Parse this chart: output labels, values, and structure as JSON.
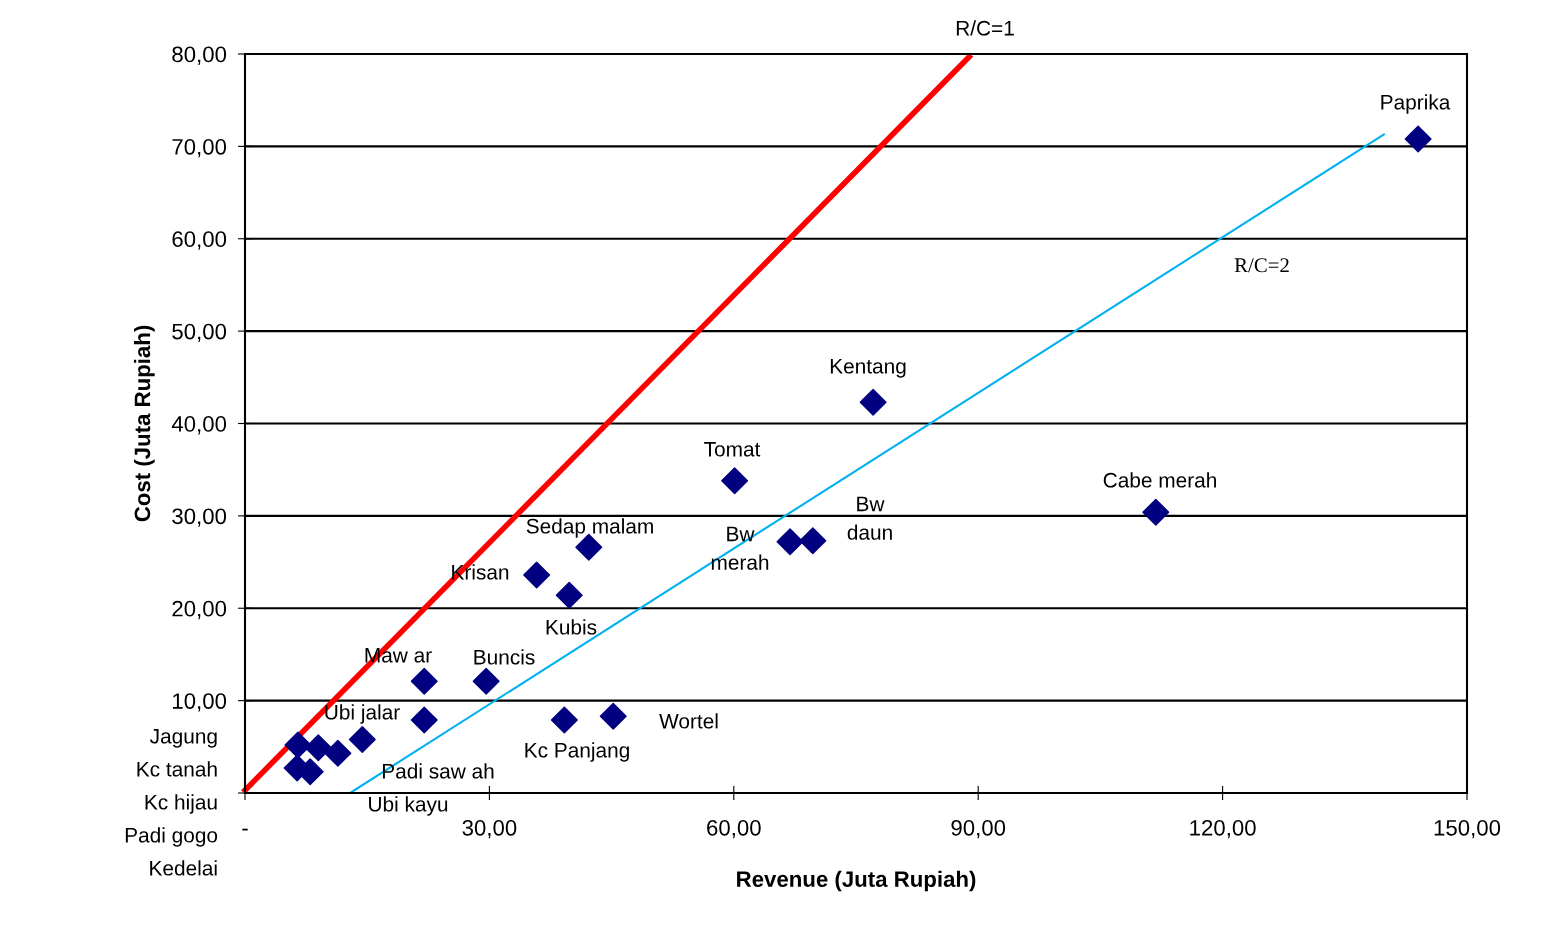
{
  "chart_data": {
    "type": "scatter",
    "xlabel": "Revenue (Juta Rupiah)",
    "ylabel": "Cost (Juta Rupiah)",
    "xlim": [
      0,
      150
    ],
    "xticks": [
      {
        "value": 0,
        "label": "-"
      },
      {
        "value": 30,
        "label": "30,00"
      },
      {
        "value": 60,
        "label": "60,00"
      },
      {
        "value": 90,
        "label": "90,00"
      },
      {
        "value": 120,
        "label": "120,00"
      },
      {
        "value": 150,
        "label": "150,00"
      }
    ],
    "ylim": [
      0,
      80
    ],
    "yticks": [
      {
        "value": 0,
        "label": null
      },
      {
        "value": 10,
        "label": "10,00"
      },
      {
        "value": 20,
        "label": "20,00"
      },
      {
        "value": 30,
        "label": "30,00"
      },
      {
        "value": 40,
        "label": "40,00"
      },
      {
        "value": 50,
        "label": "50,00"
      },
      {
        "value": 60,
        "label": "60,00"
      },
      {
        "value": 70,
        "label": "70,00"
      },
      {
        "value": 80,
        "label": "80,00"
      }
    ],
    "grid": "y",
    "legend": false,
    "series": [
      {
        "type": "line",
        "color": "#ff0000",
        "marker": "none",
        "line_style": "solid",
        "x": [
          0,
          88.9
        ],
        "values": [
          0.3,
          79.7
        ]
      },
      {
        "type": "line",
        "color": "#00b0f0",
        "marker": "none",
        "line_style": "solid",
        "x": [
          12.9,
          139.8
        ],
        "values": [
          0,
          71.3
        ]
      },
      {
        "color": "#000080",
        "marker": "diamond",
        "x": [
          144.0,
          77.1,
          60.1,
          111.8,
          66.9,
          69.7,
          42.2,
          35.8,
          39.8,
          22.0,
          29.6,
          22.0,
          39.2,
          45.2,
          14.4,
          11.4,
          9.0,
          6.5,
          6.4,
          8.0
        ],
        "values": [
          70.8,
          42.3,
          33.8,
          30.4,
          27.2,
          27.3,
          26.6,
          23.6,
          21.4,
          12.1,
          12.1,
          7.9,
          7.9,
          8.3,
          5.8,
          4.3,
          4.9,
          5.2,
          2.7,
          2.3
        ]
      }
    ],
    "annotations": [
      "Paprika",
      "Kentang",
      "Tomat",
      "Cabe merah",
      "Bw\ndaun",
      "Bw\nmerah",
      "Sedap malam",
      "Krisan",
      "Kubis",
      "Maw ar",
      "Buncis",
      "Ubi jalar",
      "Wortel",
      "Kc Panjang",
      "Padi saw ah",
      "R/C=2",
      "R/C=1",
      "Ubi kayu",
      "Jagung",
      "Kc tanah",
      "Kc hijau",
      "Padi gogo",
      "Kedelai"
    ]
  }
}
